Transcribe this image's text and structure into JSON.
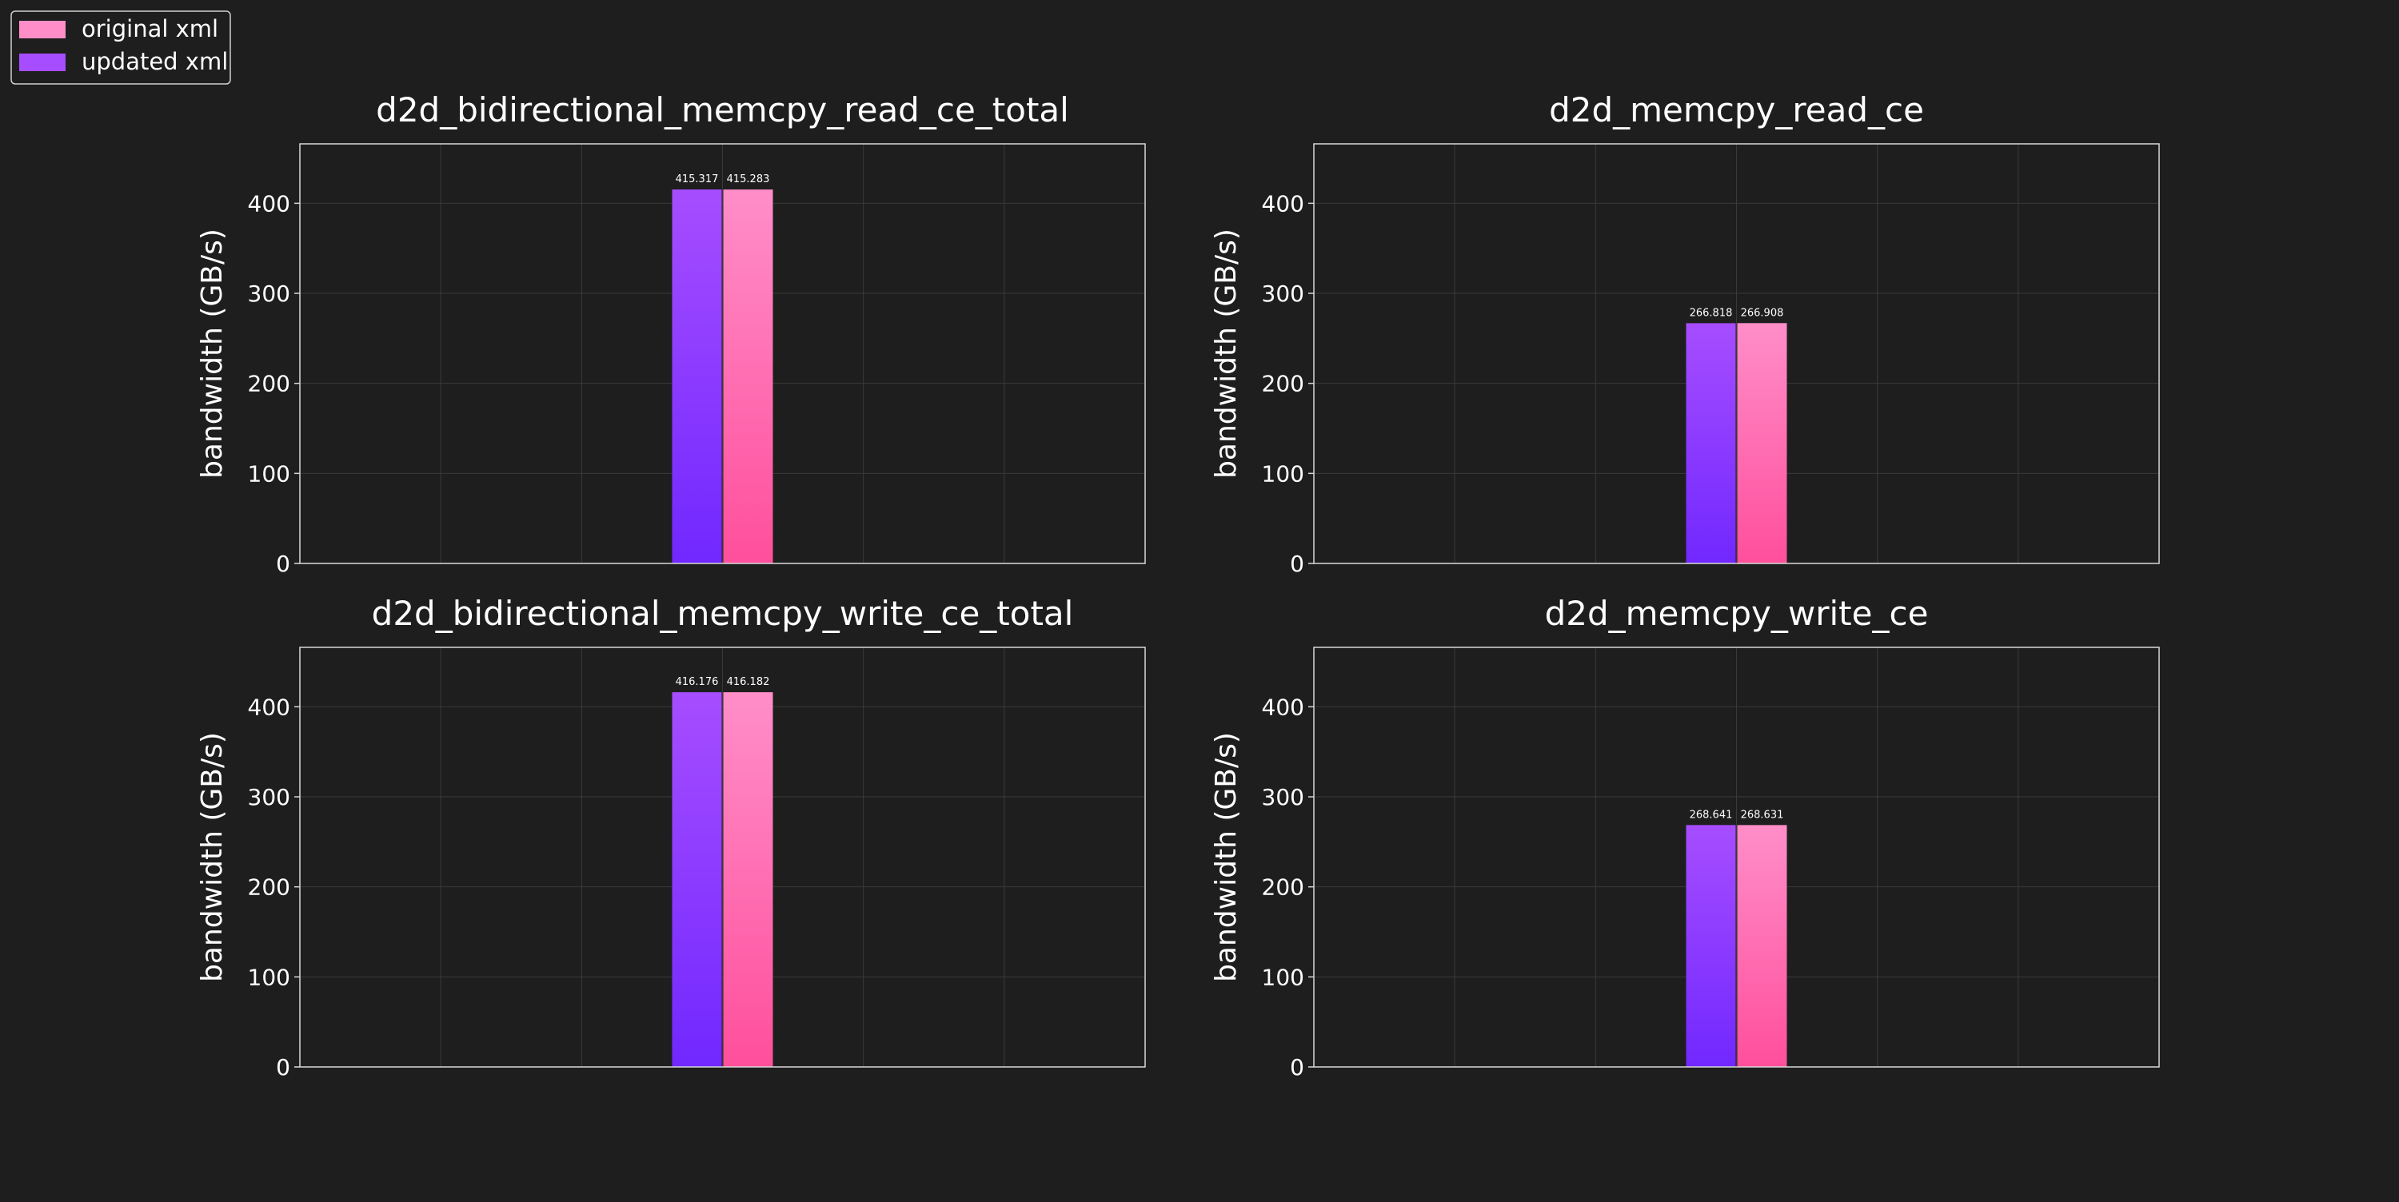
{
  "colors": {
    "background": "#1e1e1e",
    "original_top": "#ff8ec8",
    "original_bottom": "#ff4f9c",
    "updated_top": "#a64dff",
    "updated_bottom": "#7128ff",
    "grid": "#3a3a3a",
    "axes_frame": "#d8d8d8",
    "text": "#ffffff"
  },
  "legend": {
    "placement": "top-left",
    "entries": [
      {
        "label": "original xml",
        "color": "#ff8ec8"
      },
      {
        "label": "updated xml",
        "color": "#a64dff"
      }
    ]
  },
  "chart_data": [
    {
      "type": "bar",
      "title": "d2d_bidirectional_memcpy_read_ce_total",
      "ylabel": "bandwidth (GB/s)",
      "ylim": [
        0,
        466
      ],
      "yticks": [
        0,
        100,
        200,
        300,
        400
      ],
      "grid": true,
      "series": [
        {
          "name": "updated xml",
          "values": [
            415.317
          ],
          "labels": [
            "415.317"
          ]
        },
        {
          "name": "original xml",
          "values": [
            415.283
          ],
          "labels": [
            "415.283"
          ]
        }
      ]
    },
    {
      "type": "bar",
      "title": "d2d_memcpy_read_ce",
      "ylabel": "bandwidth (GB/s)",
      "ylim": [
        0,
        466
      ],
      "yticks": [
        0,
        100,
        200,
        300,
        400
      ],
      "grid": true,
      "series": [
        {
          "name": "updated xml",
          "values": [
            266.818
          ],
          "labels": [
            "266.818"
          ]
        },
        {
          "name": "original xml",
          "values": [
            266.908
          ],
          "labels": [
            "266.908"
          ]
        }
      ]
    },
    {
      "type": "bar",
      "title": "d2d_bidirectional_memcpy_write_ce_total",
      "ylabel": "bandwidth (GB/s)",
      "ylim": [
        0,
        466
      ],
      "yticks": [
        0,
        100,
        200,
        300,
        400
      ],
      "grid": true,
      "series": [
        {
          "name": "updated xml",
          "values": [
            416.176
          ],
          "labels": [
            "416.176"
          ]
        },
        {
          "name": "original xml",
          "values": [
            416.182
          ],
          "labels": [
            "416.182"
          ]
        }
      ]
    },
    {
      "type": "bar",
      "title": "d2d_memcpy_write_ce",
      "ylabel": "bandwidth (GB/s)",
      "ylim": [
        0,
        466
      ],
      "yticks": [
        0,
        100,
        200,
        300,
        400
      ],
      "grid": true,
      "series": [
        {
          "name": "updated xml",
          "values": [
            268.641
          ],
          "labels": [
            "268.641"
          ]
        },
        {
          "name": "original xml",
          "values": [
            268.631
          ],
          "labels": [
            "268.631"
          ]
        }
      ]
    }
  ]
}
